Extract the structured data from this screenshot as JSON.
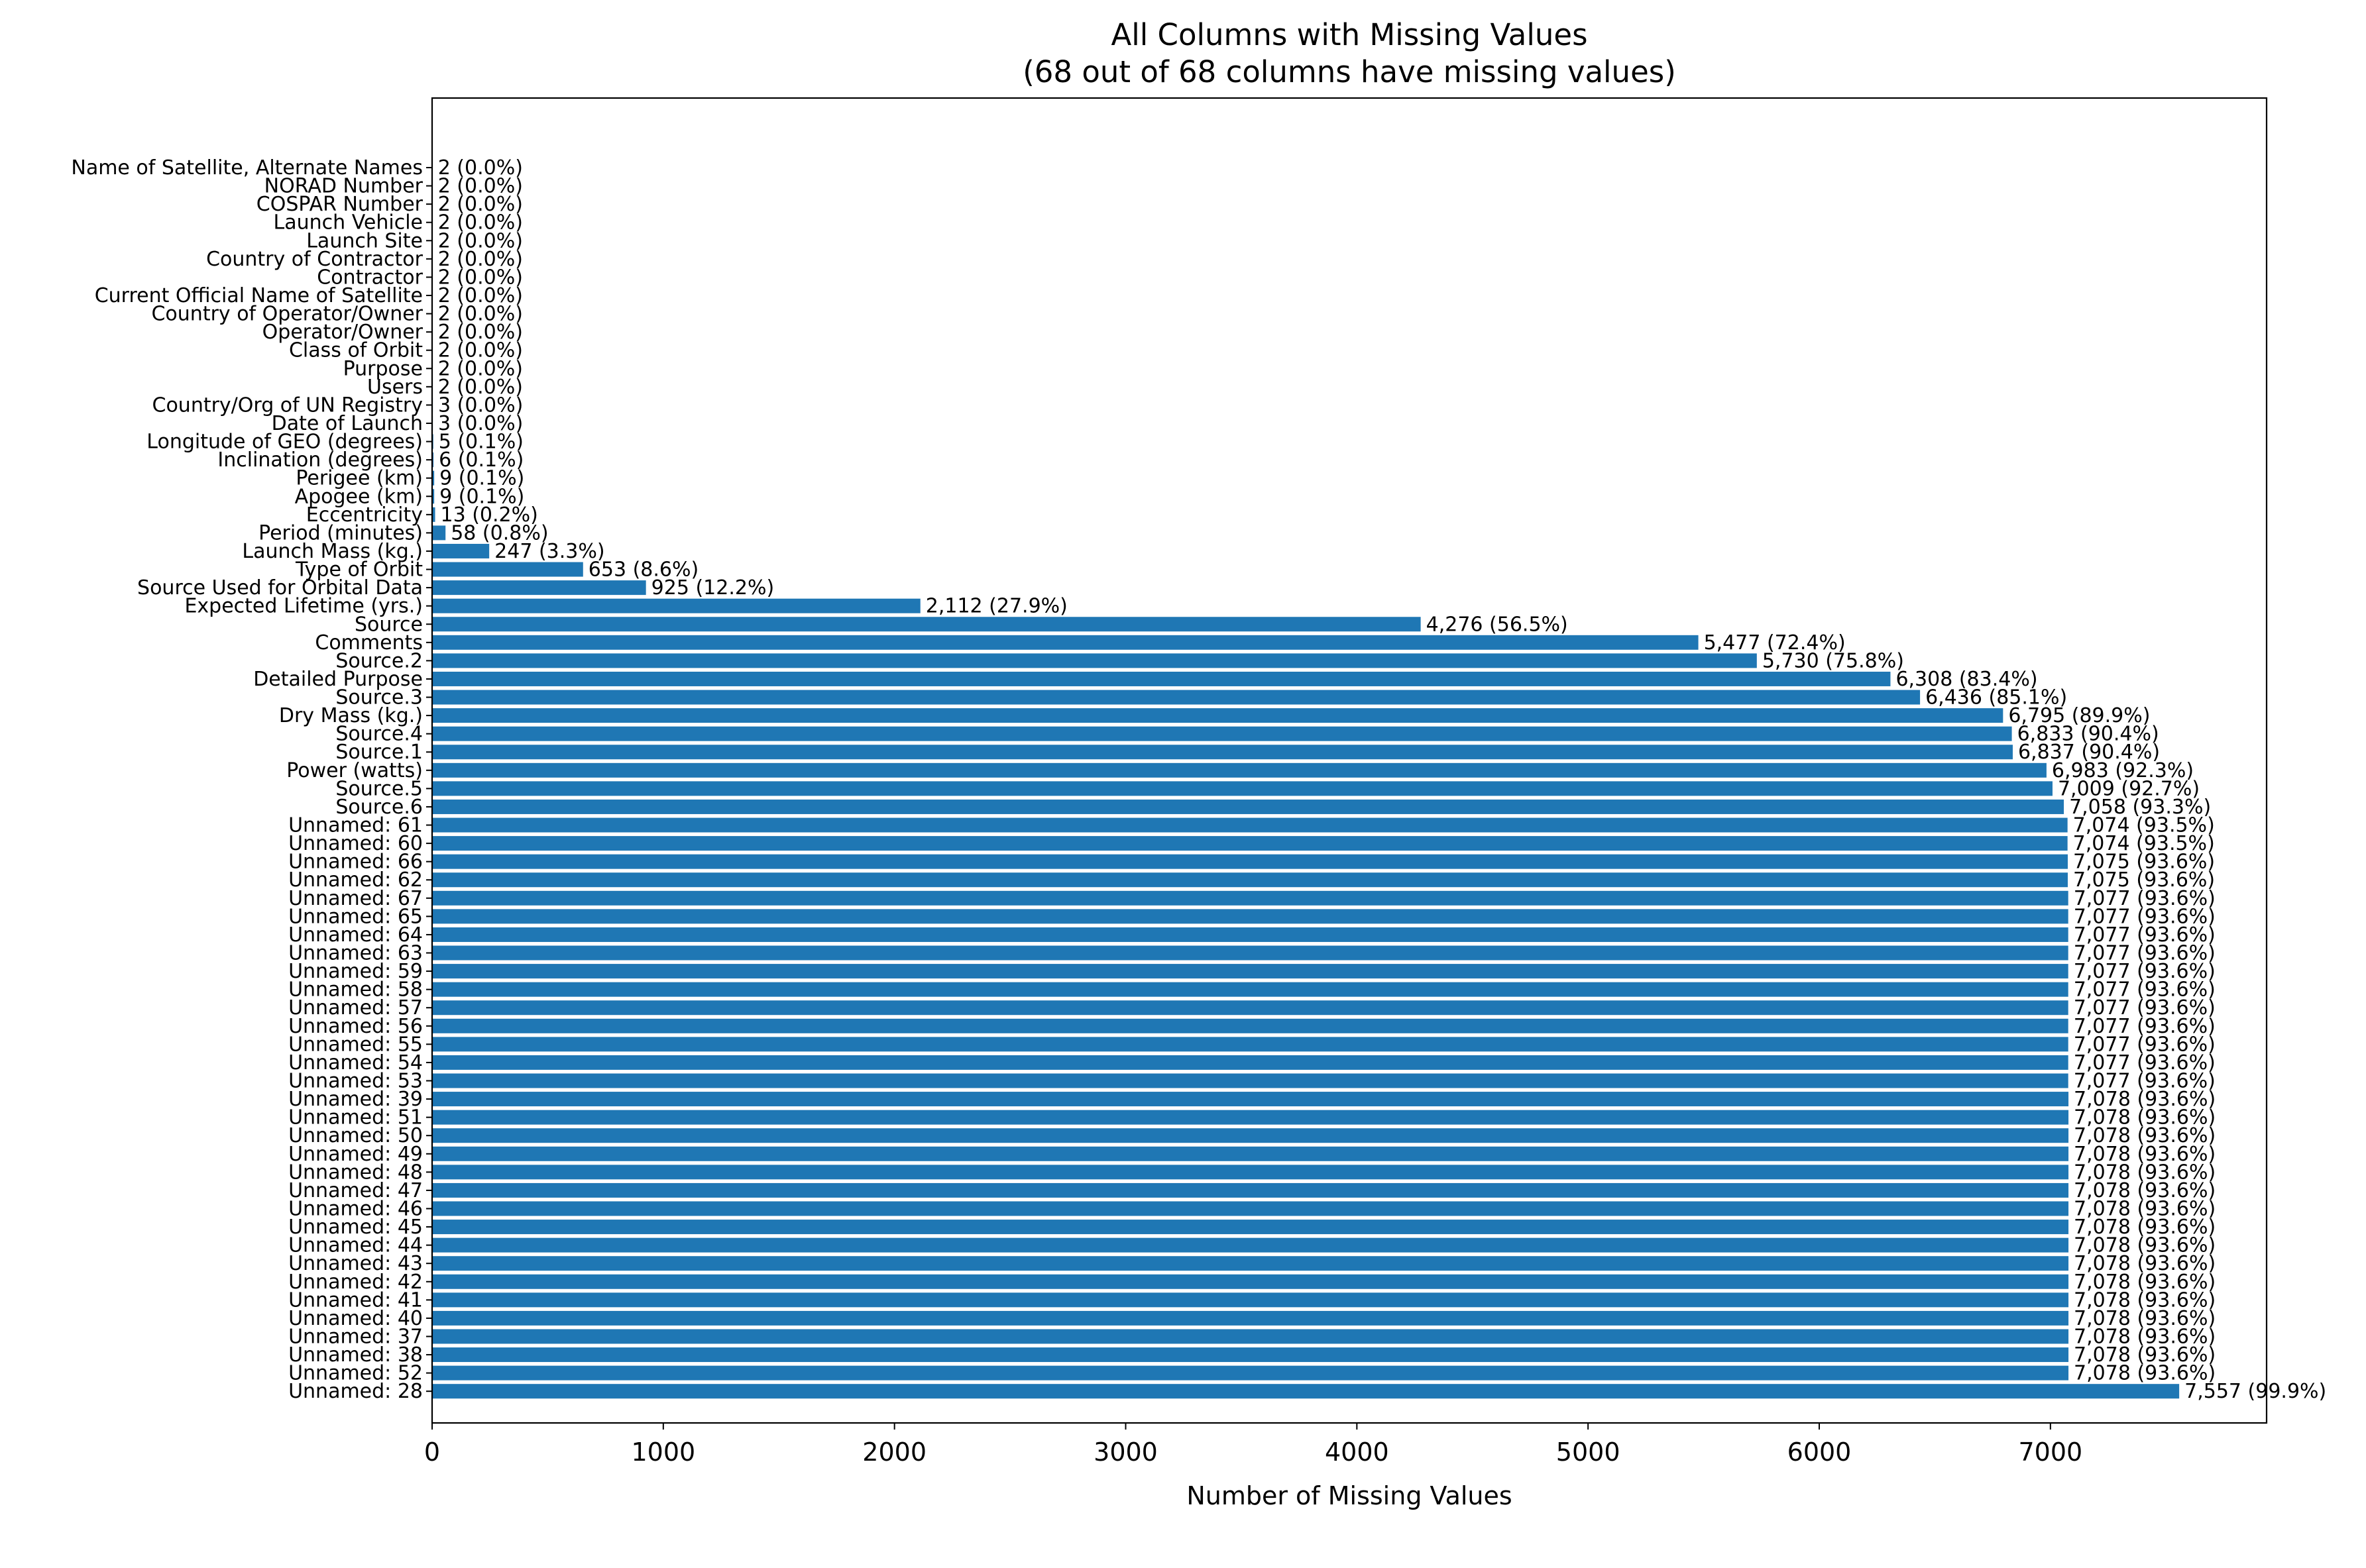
{
  "chart_data": {
    "type": "bar",
    "orientation": "horizontal",
    "title": "All Columns with Missing Values",
    "subtitle": "(68 out of 68 columns have missing values)",
    "xlabel": "Number of Missing Values",
    "ylabel": "",
    "xlim": [
      0,
      7935
    ],
    "xticks": [
      "0",
      "1000",
      "2000",
      "3000",
      "4000",
      "5000",
      "6000",
      "7000"
    ],
    "grid": false,
    "legend": "none",
    "bar_color": "#1f77b4",
    "categories": [
      "Name of Satellite, Alternate Names",
      "NORAD Number",
      "COSPAR Number",
      "Launch Vehicle",
      "Launch Site",
      "Country of Contractor",
      "Contractor",
      "Current Official Name of Satellite",
      "Country of Operator/Owner",
      "Operator/Owner",
      "Class of Orbit",
      "Purpose",
      "Users",
      "Country/Org of UN Registry",
      "Date of Launch",
      "Longitude of GEO (degrees)",
      "Inclination (degrees)",
      "Perigee (km)",
      "Apogee (km)",
      "Eccentricity",
      "Period (minutes)",
      "Launch Mass (kg.)",
      "Type of Orbit",
      "Source Used for Orbital Data",
      "Expected Lifetime (yrs.)",
      "Source",
      "Comments",
      "Source.2",
      "Detailed Purpose",
      "Source.3",
      "Dry Mass (kg.)",
      "Source.4",
      "Source.1",
      "Power (watts)",
      "Source.5",
      "Source.6",
      "Unnamed: 61",
      "Unnamed: 60",
      "Unnamed: 66",
      "Unnamed: 62",
      "Unnamed: 67",
      "Unnamed: 65",
      "Unnamed: 64",
      "Unnamed: 63",
      "Unnamed: 59",
      "Unnamed: 58",
      "Unnamed: 57",
      "Unnamed: 56",
      "Unnamed: 55",
      "Unnamed: 54",
      "Unnamed: 53",
      "Unnamed: 39",
      "Unnamed: 51",
      "Unnamed: 50",
      "Unnamed: 49",
      "Unnamed: 48",
      "Unnamed: 47",
      "Unnamed: 46",
      "Unnamed: 45",
      "Unnamed: 44",
      "Unnamed: 43",
      "Unnamed: 42",
      "Unnamed: 41",
      "Unnamed: 40",
      "Unnamed: 37",
      "Unnamed: 38",
      "Unnamed: 52",
      "Unnamed: 28"
    ],
    "values": [
      2,
      2,
      2,
      2,
      2,
      2,
      2,
      2,
      2,
      2,
      2,
      2,
      2,
      3,
      3,
      5,
      6,
      9,
      9,
      13,
      58,
      247,
      653,
      925,
      2112,
      4276,
      5477,
      5730,
      6308,
      6436,
      6795,
      6833,
      6837,
      6983,
      7009,
      7058,
      7074,
      7074,
      7075,
      7075,
      7077,
      7077,
      7077,
      7077,
      7077,
      7077,
      7077,
      7077,
      7077,
      7077,
      7077,
      7078,
      7078,
      7078,
      7078,
      7078,
      7078,
      7078,
      7078,
      7078,
      7078,
      7078,
      7078,
      7078,
      7078,
      7078,
      7078,
      7557
    ],
    "data_labels": [
      "2 (0.0%)",
      "2 (0.0%)",
      "2 (0.0%)",
      "2 (0.0%)",
      "2 (0.0%)",
      "2 (0.0%)",
      "2 (0.0%)",
      "2 (0.0%)",
      "2 (0.0%)",
      "2 (0.0%)",
      "2 (0.0%)",
      "2 (0.0%)",
      "2 (0.0%)",
      "3 (0.0%)",
      "3 (0.0%)",
      "5 (0.1%)",
      "6 (0.1%)",
      "9 (0.1%)",
      "9 (0.1%)",
      "13 (0.2%)",
      "58 (0.8%)",
      "247 (3.3%)",
      "653 (8.6%)",
      "925 (12.2%)",
      "2,112 (27.9%)",
      "4,276 (56.5%)",
      "5,477 (72.4%)",
      "5,730 (75.8%)",
      "6,308 (83.4%)",
      "6,436 (85.1%)",
      "6,795 (89.9%)",
      "6,833 (90.4%)",
      "6,837 (90.4%)",
      "6,983 (92.3%)",
      "7,009 (92.7%)",
      "7,058 (93.3%)",
      "7,074 (93.5%)",
      "7,074 (93.5%)",
      "7,075 (93.6%)",
      "7,075 (93.6%)",
      "7,077 (93.6%)",
      "7,077 (93.6%)",
      "7,077 (93.6%)",
      "7,077 (93.6%)",
      "7,077 (93.6%)",
      "7,077 (93.6%)",
      "7,077 (93.6%)",
      "7,077 (93.6%)",
      "7,077 (93.6%)",
      "7,077 (93.6%)",
      "7,077 (93.6%)",
      "7,078 (93.6%)",
      "7,078 (93.6%)",
      "7,078 (93.6%)",
      "7,078 (93.6%)",
      "7,078 (93.6%)",
      "7,078 (93.6%)",
      "7,078 (93.6%)",
      "7,078 (93.6%)",
      "7,078 (93.6%)",
      "7,078 (93.6%)",
      "7,078 (93.6%)",
      "7,078 (93.6%)",
      "7,078 (93.6%)",
      "7,078 (93.6%)",
      "7,078 (93.6%)",
      "7,078 (93.6%)",
      "7,557 (99.9%)"
    ]
  }
}
